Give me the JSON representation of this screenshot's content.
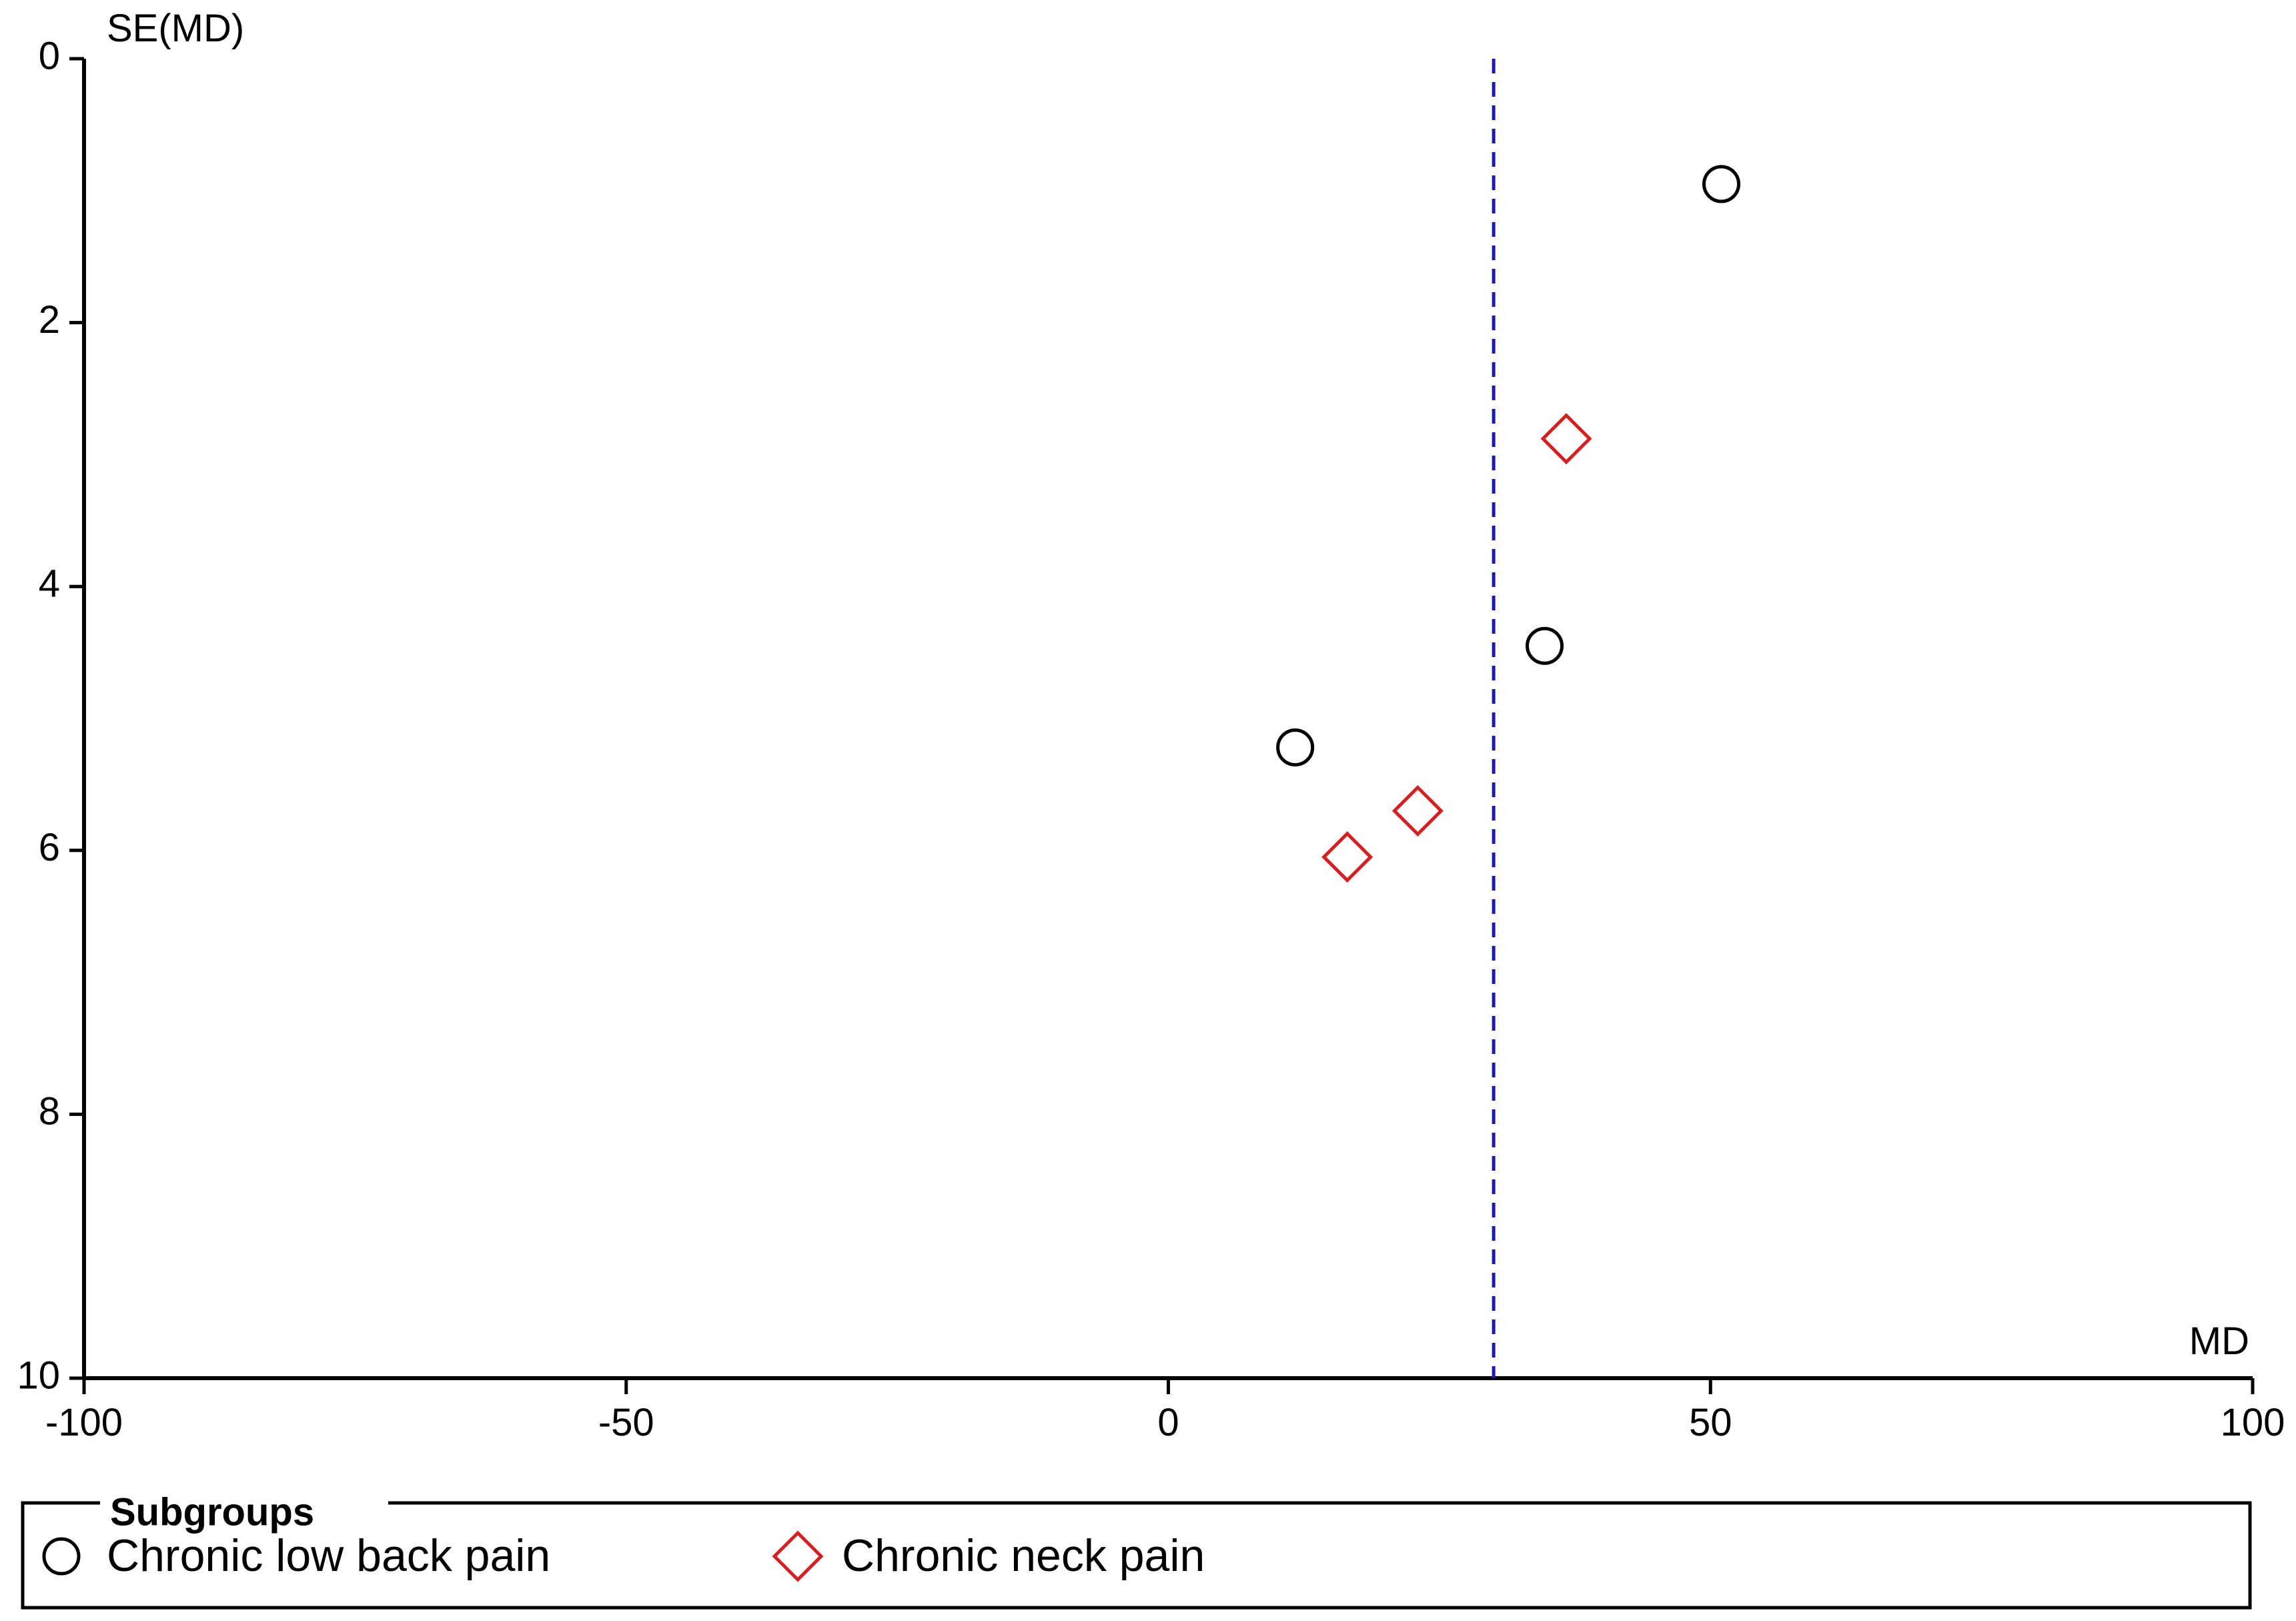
{
  "chart_data": {
    "type": "scatter",
    "title": "",
    "xlabel": "MD",
    "ylabel": "SE(MD)",
    "xlim": [
      -100,
      100
    ],
    "ylim": [
      0,
      10
    ],
    "y_inverted": true,
    "x_ticks": [
      "-100",
      "-50",
      "0",
      "50",
      "100"
    ],
    "y_ticks": [
      "0",
      "2",
      "4",
      "6",
      "8",
      "10"
    ],
    "reference_line": {
      "x": 30,
      "style": "dashed",
      "color": "#1a1aa6"
    },
    "series": [
      {
        "name": "Chronic low back pain",
        "marker": "circle",
        "color": "#000000",
        "points": [
          {
            "x": 51,
            "y": 0.95
          },
          {
            "x": 34.7,
            "y": 4.45
          },
          {
            "x": 11.7,
            "y": 5.22
          }
        ]
      },
      {
        "name": "Chronic neck pain",
        "marker": "diamond",
        "color": "#d42020",
        "points": [
          {
            "x": 36.7,
            "y": 2.88
          },
          {
            "x": 23,
            "y": 5.7
          },
          {
            "x": 16.5,
            "y": 6.05
          }
        ]
      }
    ],
    "legend": {
      "title": "Subgroups",
      "position": "bottom"
    },
    "grid": false
  }
}
